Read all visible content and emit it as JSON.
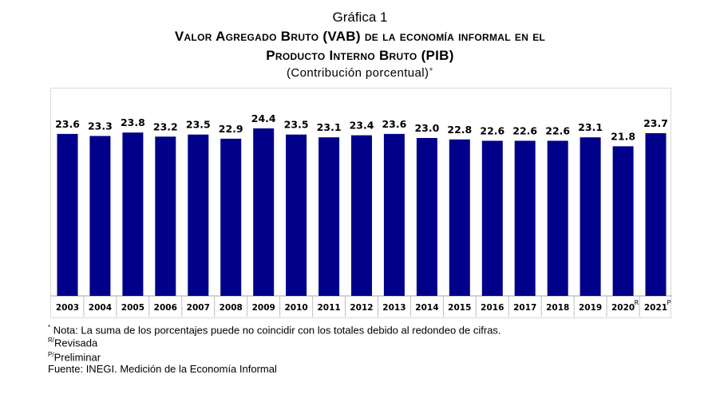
{
  "figure": {
    "number": "Gráfica 1",
    "title_line1": "Valor Agregado Bruto (VAB) de la economía informal en el",
    "title_line2": "Producto Interno Bruto (PIB)",
    "subtitle": "(Contribución porcentual)",
    "subtitle_mark": "+"
  },
  "notes": {
    "note_mark": "*",
    "note_text": "Nota: La suma de los porcentajes puede no coincidir con los totales debido al redondeo de cifras.",
    "revised_mark": "R/",
    "revised_text": "Revisada",
    "preliminary_mark": "P/",
    "preliminary_text": "Preliminar",
    "source": "Fuente: INEGI. Medición de la Economía Informal"
  },
  "chart_data": {
    "type": "bar",
    "categories": [
      "2003",
      "2004",
      "2005",
      "2006",
      "2007",
      "2008",
      "2009",
      "2010",
      "2011",
      "2012",
      "2013",
      "2014",
      "2015",
      "2016",
      "2017",
      "2018",
      "2019",
      "2020",
      "2021"
    ],
    "category_marks": [
      "",
      "",
      "",
      "",
      "",
      "",
      "",
      "",
      "",
      "",
      "",
      "",
      "",
      "",
      "",
      "",
      "",
      "R",
      "P"
    ],
    "values": [
      23.6,
      23.3,
      23.8,
      23.2,
      23.5,
      22.9,
      24.4,
      23.5,
      23.1,
      23.4,
      23.6,
      23.0,
      22.8,
      22.6,
      22.6,
      22.6,
      23.1,
      21.8,
      23.7
    ],
    "value_labels": [
      "23.6",
      "23.3",
      "23.8",
      "23.2",
      "23.5",
      "22.9",
      "24.4",
      "23.5",
      "23.1",
      "23.4",
      "23.6",
      "23.0",
      "22.8",
      "22.6",
      "22.6",
      "22.6",
      "23.1",
      "21.8",
      "23.7"
    ],
    "ylim": [
      0,
      26
    ],
    "grid": false,
    "bar_color": "#00008b"
  }
}
